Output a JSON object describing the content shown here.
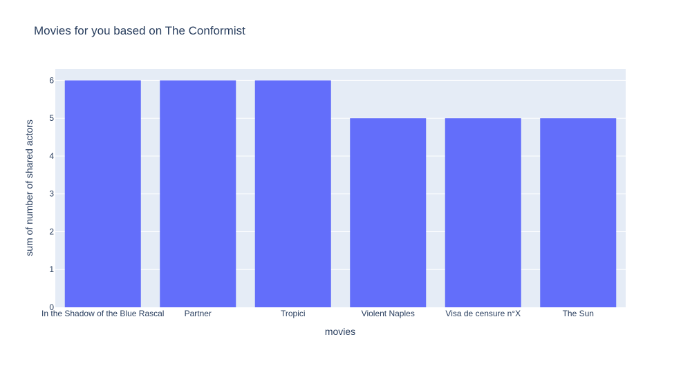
{
  "chart_data": {
    "type": "bar",
    "title": "Movies for you based on The Conformist",
    "xlabel": "movies",
    "ylabel": "sum of number of shared actors",
    "categories": [
      "In the Shadow of the Blue Rascal",
      "Partner",
      "Tropici",
      "Violent Naples",
      "Visa de censure n°X",
      "The Sun"
    ],
    "values": [
      6,
      6,
      6,
      5,
      5,
      5
    ],
    "ylim": [
      0,
      6.3
    ],
    "yticks": [
      0,
      1,
      2,
      3,
      4,
      5,
      6
    ],
    "grid": true,
    "legend": false,
    "bar_color": "#636efa",
    "plot_bg": "#e5ecf6",
    "text_color": "#2a3f5f"
  }
}
